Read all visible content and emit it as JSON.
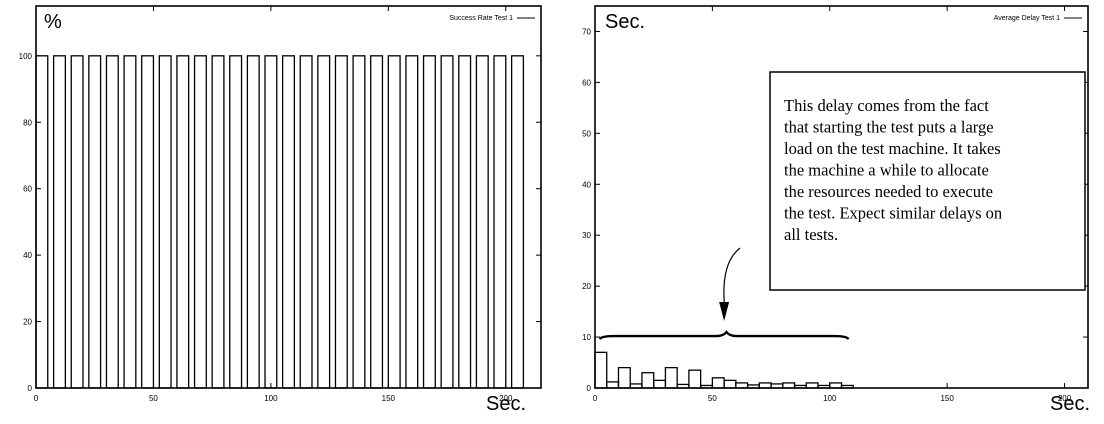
{
  "chart_data": [
    {
      "type": "bar",
      "title": "",
      "ylabel": "%",
      "xlabel": "Sec.",
      "legend": {
        "label": "Success Rate Test 1",
        "placement": "top-right"
      },
      "xlim": [
        0,
        215
      ],
      "ylim": [
        0,
        115
      ],
      "xticks": [
        0,
        50,
        100,
        150,
        200
      ],
      "yticks": [
        0,
        20,
        40,
        60,
        80,
        100
      ],
      "bar_width": 5,
      "x": [
        0,
        7.5,
        15,
        22.5,
        30,
        37.5,
        45,
        52.5,
        60,
        67.5,
        75,
        82.5,
        90,
        97.5,
        105,
        112.5,
        120,
        127.5,
        135,
        142.5,
        150,
        157.5,
        165,
        172.5,
        180,
        187.5,
        195,
        202.5
      ],
      "values": [
        100,
        100,
        100,
        100,
        100,
        100,
        100,
        100,
        100,
        100,
        100,
        100,
        100,
        100,
        100,
        100,
        100,
        100,
        100,
        100,
        100,
        100,
        100,
        100,
        100,
        100,
        100,
        100
      ],
      "grid": false
    },
    {
      "type": "bar",
      "title": "",
      "ylabel": "Sec.",
      "xlabel": "Sec.",
      "legend": {
        "label": "Average Delay Test 1",
        "placement": "top-right"
      },
      "xlim": [
        0,
        210
      ],
      "ylim": [
        0,
        75
      ],
      "xticks": [
        0,
        50,
        100,
        150,
        200
      ],
      "yticks": [
        0,
        10,
        20,
        30,
        40,
        50,
        60,
        70
      ],
      "bar_width": 5,
      "x": [
        0,
        5,
        10,
        15,
        20,
        25,
        30,
        35,
        40,
        45,
        50,
        55,
        60,
        65,
        70,
        75,
        80,
        85,
        90,
        95,
        100,
        105
      ],
      "values": [
        7,
        1.2,
        4,
        0.8,
        3,
        1.5,
        4,
        0.7,
        3.5,
        0.5,
        2,
        1.5,
        1,
        0.6,
        1,
        0.8,
        1,
        0.5,
        1,
        0.5,
        1,
        0.5
      ],
      "grid": false,
      "annotation": {
        "lines": [
          "This delay comes from the fact",
          "that starting the test puts a large",
          "load on the test machine.  It takes",
          "the machine a while to allocate",
          "the resources needed to execute",
          "the test.  Expect similar delays on",
          "all tests."
        ]
      }
    }
  ]
}
